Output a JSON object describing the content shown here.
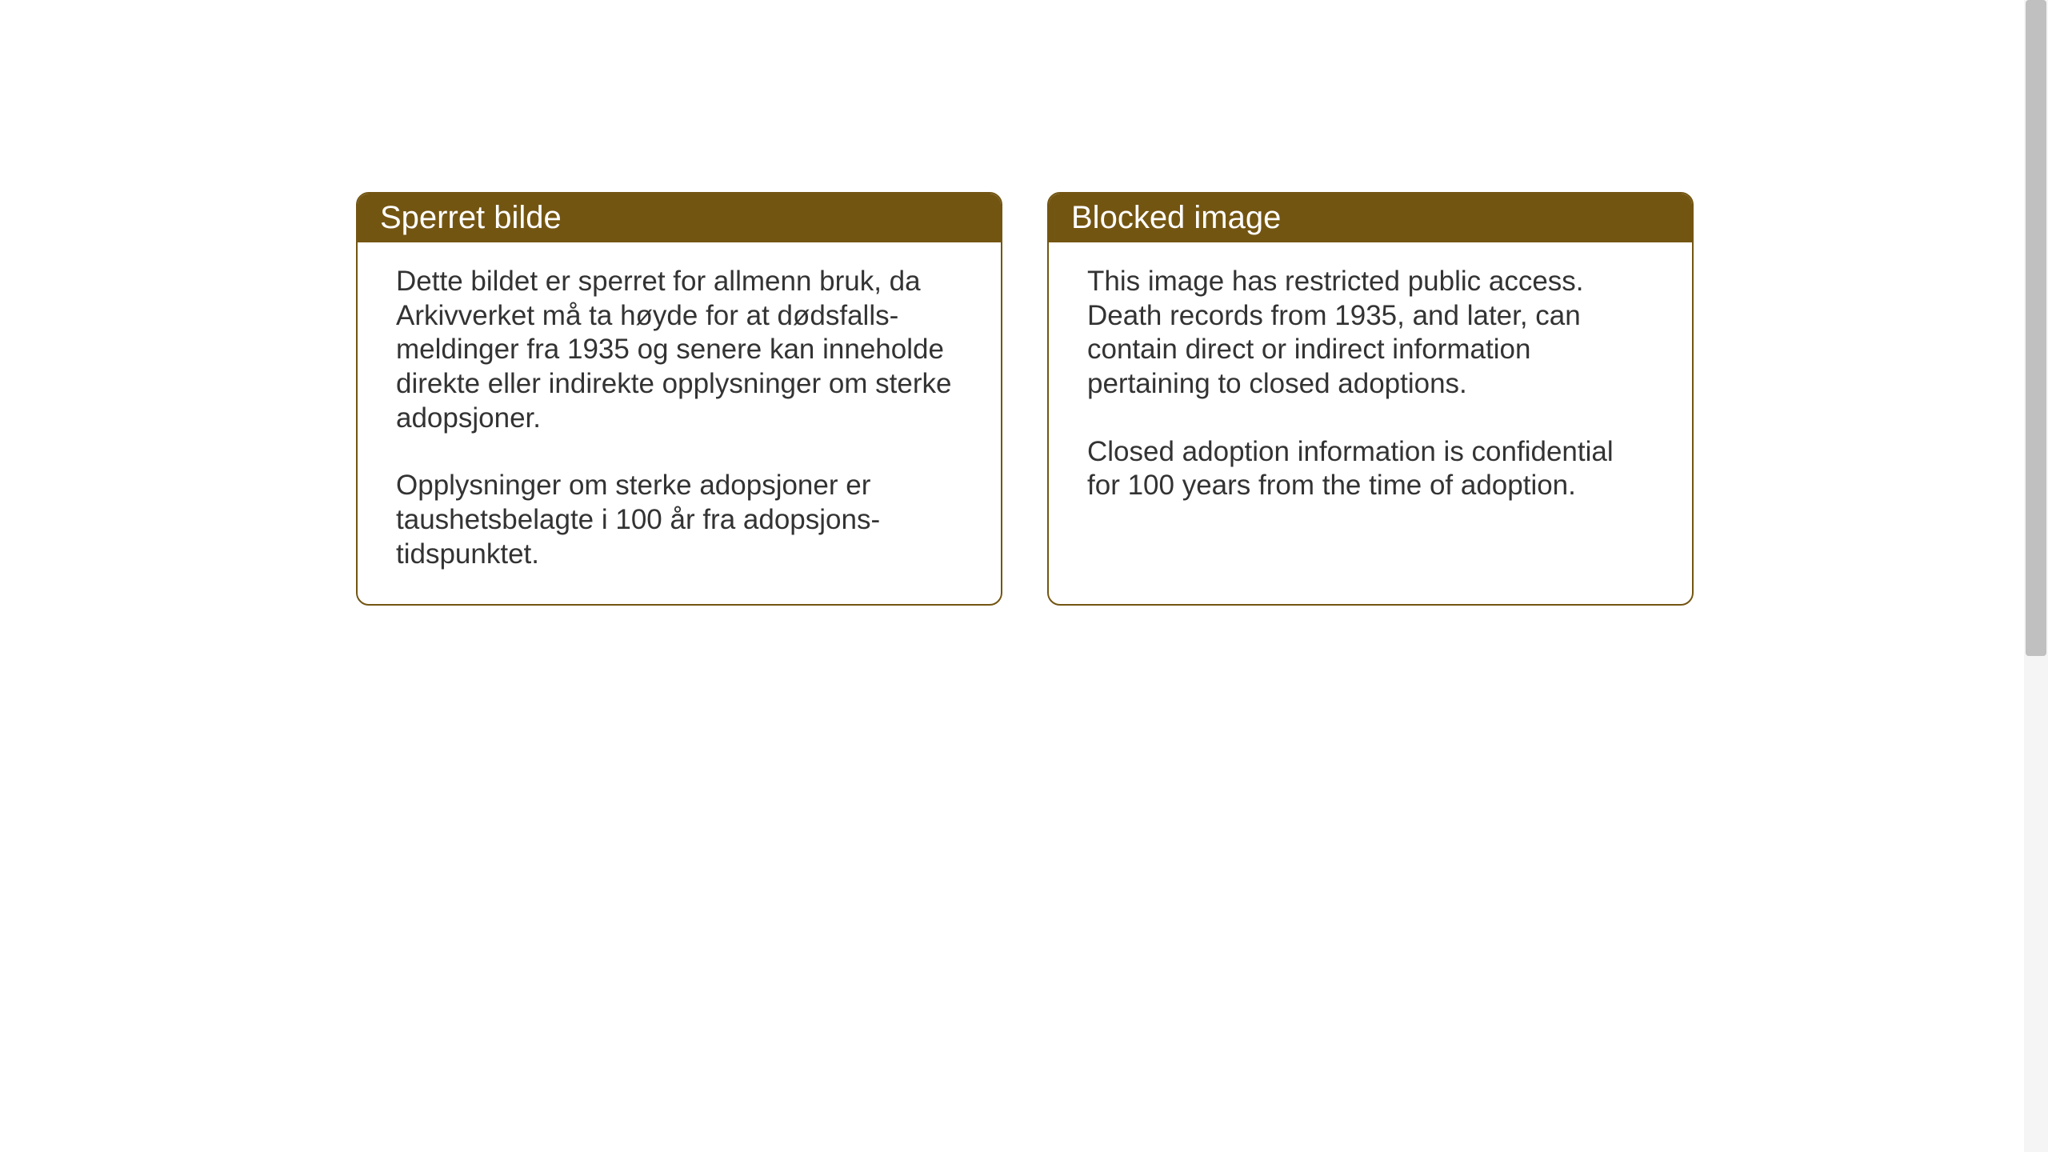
{
  "layout": {
    "background_color": "#ffffff",
    "card_border_color": "#735512",
    "header_bg_color": "#735512",
    "header_text_color": "#ffffff",
    "body_text_color": "#333333",
    "card_border_radius": 16,
    "header_fontsize": 40,
    "body_fontsize": 35
  },
  "cards": {
    "norwegian": {
      "title": "Sperret bilde",
      "paragraph1": "Dette bildet er sperret for allmenn bruk, da Arkivverket må ta høyde for at dødsfalls­meldinger fra 1935 og senere kan inneholde direkte eller indirekte opplysninger om sterke adopsjoner.",
      "paragraph2": "Opplysninger om sterke adopsjoner er taushetsbelagte i 100 år fra adopsjons­tidspunktet."
    },
    "english": {
      "title": "Blocked image",
      "paragraph1": "This image has restricted public access. Death records from 1935, and later, can contain direct or indirect information pertaining to closed adoptions.",
      "paragraph2": "Closed adoption information is confidential for 100 years from the time of adoption."
    }
  }
}
